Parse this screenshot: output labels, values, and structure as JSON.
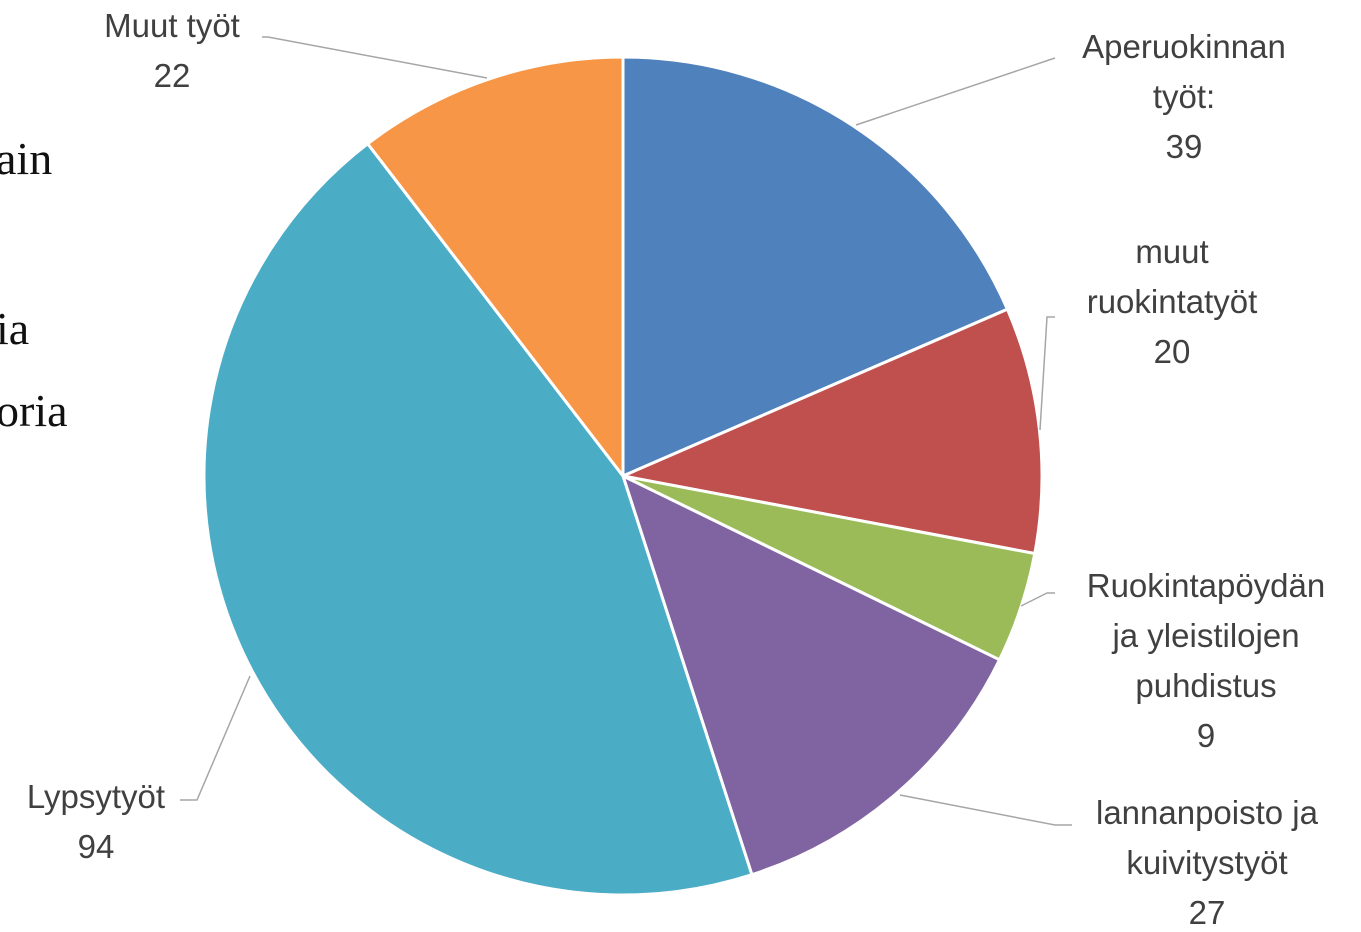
{
  "background_fragments": [
    "ain",
    "ia",
    "oria"
  ],
  "chart_data": {
    "type": "pie",
    "title": "",
    "start_angle_deg": 0,
    "direction": "clockwise",
    "slices": [
      {
        "label": [
          "Aperuokinnan",
          "työt:"
        ],
        "value": 39,
        "color": "#4f81bd"
      },
      {
        "label": [
          "muut",
          "ruokintatyöt"
        ],
        "value": 20,
        "color": "#c0504d"
      },
      {
        "label": [
          "Ruokintapöydän",
          "ja yleistilojen",
          "puhdistus"
        ],
        "value": 9,
        "color": "#9bbb59"
      },
      {
        "label": [
          "lannanpoisto ja",
          "kuivitystyöt"
        ],
        "value": 27,
        "color": "#8064a2"
      },
      {
        "label": [
          "Lypsytyöt"
        ],
        "value": 94,
        "color": "#4bacc6"
      },
      {
        "label": [
          "Muut työt"
        ],
        "value": 22,
        "color": "#f79646"
      }
    ]
  }
}
